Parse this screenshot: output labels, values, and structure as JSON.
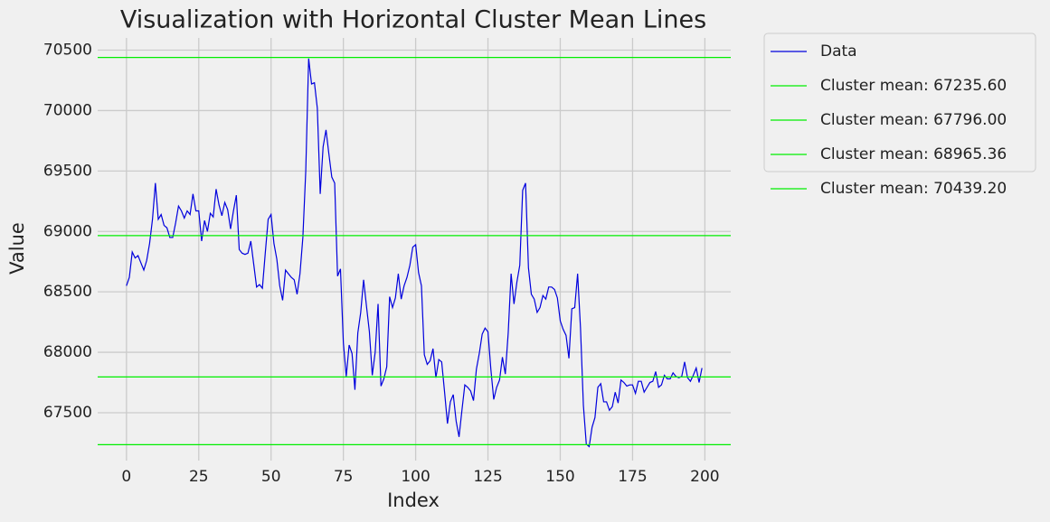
{
  "chart_data": {
    "type": "line",
    "title": "Visualization with Horizontal Cluster Mean Lines",
    "xlabel": "Index",
    "ylabel": "Value",
    "x": [
      0,
      1,
      2,
      3,
      4,
      5,
      6,
      7,
      8,
      9,
      10,
      11,
      12,
      13,
      14,
      15,
      16,
      17,
      18,
      19,
      20,
      21,
      22,
      23,
      24,
      25,
      26,
      27,
      28,
      29,
      30,
      31,
      32,
      33,
      34,
      35,
      36,
      37,
      38,
      39,
      40,
      41,
      42,
      43,
      44,
      45,
      46,
      47,
      48,
      49,
      50,
      51,
      52,
      53,
      54,
      55,
      56,
      57,
      58,
      59,
      60,
      61,
      62,
      63,
      64,
      65,
      66,
      67,
      68,
      69,
      70,
      71,
      72,
      73,
      74,
      75,
      76,
      77,
      78,
      79,
      80,
      81,
      82,
      83,
      84,
      85,
      86,
      87,
      88,
      89,
      90,
      91,
      92,
      93,
      94,
      95,
      96,
      97,
      98,
      99,
      100,
      101,
      102,
      103,
      104,
      105,
      106,
      107,
      108,
      109,
      110,
      111,
      112,
      113,
      114,
      115,
      116,
      117,
      118,
      119,
      120,
      121,
      122,
      123,
      124,
      125,
      126,
      127,
      128,
      129,
      130,
      131,
      132,
      133,
      134,
      135,
      136,
      137,
      138,
      139,
      140,
      141,
      142,
      143,
      144,
      145,
      146,
      147,
      148,
      149,
      150,
      151,
      152,
      153,
      154,
      155,
      156,
      157,
      158,
      159,
      160,
      161,
      162,
      163,
      164,
      165,
      166,
      167,
      168,
      169,
      170,
      171,
      172,
      173,
      174,
      175,
      176,
      177,
      178,
      179,
      180,
      181,
      182,
      183,
      184,
      185,
      186,
      187,
      188,
      189,
      190,
      191,
      192,
      193,
      194,
      195,
      196,
      197,
      198,
      199
    ],
    "series": [
      {
        "name": "Data",
        "color": "#0000dd",
        "values": [
          68550,
          68620,
          68830,
          68780,
          68800,
          68740,
          68680,
          68760,
          68900,
          69100,
          69400,
          69100,
          69140,
          69050,
          69030,
          68950,
          68950,
          69070,
          69210,
          69170,
          69110,
          69170,
          69140,
          69310,
          69170,
          69170,
          68920,
          69090,
          69000,
          69150,
          69120,
          69350,
          69220,
          69130,
          69240,
          69180,
          69020,
          69170,
          69300,
          68850,
          68820,
          68810,
          68820,
          68920,
          68730,
          68540,
          68560,
          68530,
          68820,
          69100,
          69140,
          68900,
          68770,
          68550,
          68430,
          68680,
          68650,
          68620,
          68600,
          68480,
          68650,
          68950,
          69500,
          70430,
          70220,
          70230,
          70020,
          69310,
          69700,
          69840,
          69640,
          69450,
          69400,
          68630,
          68690,
          68080,
          67800,
          68060,
          67990,
          67690,
          68160,
          68330,
          68600,
          68380,
          68170,
          67810,
          68000,
          68400,
          67720,
          67780,
          67880,
          68460,
          68370,
          68450,
          68650,
          68440,
          68550,
          68620,
          68720,
          68870,
          68890,
          68660,
          68550,
          67980,
          67900,
          67930,
          68030,
          67790,
          67940,
          67920,
          67670,
          67410,
          67590,
          67650,
          67430,
          67300,
          67520,
          67730,
          67710,
          67680,
          67600,
          67860,
          67990,
          68150,
          68200,
          68170,
          67860,
          67610,
          67710,
          67770,
          67960,
          67820,
          68160,
          68650,
          68400,
          68580,
          68720,
          69340,
          69400,
          68700,
          68480,
          68440,
          68330,
          68370,
          68470,
          68440,
          68540,
          68540,
          68520,
          68450,
          68260,
          68190,
          68140,
          67950,
          68360,
          68370,
          68650,
          68200,
          67560,
          67240,
          67220,
          67380,
          67460,
          67710,
          67740,
          67590,
          67590,
          67520,
          67550,
          67670,
          67580,
          67770,
          67750,
          67720,
          67730,
          67730,
          67660,
          67760,
          67760,
          67670,
          67710,
          67750,
          67760,
          67840,
          67710,
          67730,
          67810,
          67780,
          67780,
          67830,
          67800,
          67790,
          67800,
          67920,
          67790,
          67760,
          67810,
          67870,
          67750,
          67870
        ]
      }
    ],
    "hlines": [
      {
        "name": "Cluster mean: 67235.60",
        "value": 67235.6,
        "color": "#00ee00"
      },
      {
        "name": "Cluster mean: 67796.00",
        "value": 67796.0,
        "color": "#00ee00"
      },
      {
        "name": "Cluster mean: 68965.36",
        "value": 68965.36,
        "color": "#00ee00"
      },
      {
        "name": "Cluster mean: 70439.20",
        "value": 70439.2,
        "color": "#00ee00"
      }
    ],
    "xlim": [
      -9.95,
      208.95
    ],
    "ylim": [
      67059,
      70601
    ],
    "xticks": [
      0,
      25,
      50,
      75,
      100,
      125,
      150,
      175,
      200
    ],
    "yticks": [
      67500,
      68000,
      68500,
      69000,
      69500,
      70000,
      70500
    ],
    "grid": true,
    "legend": "outside upper right"
  }
}
